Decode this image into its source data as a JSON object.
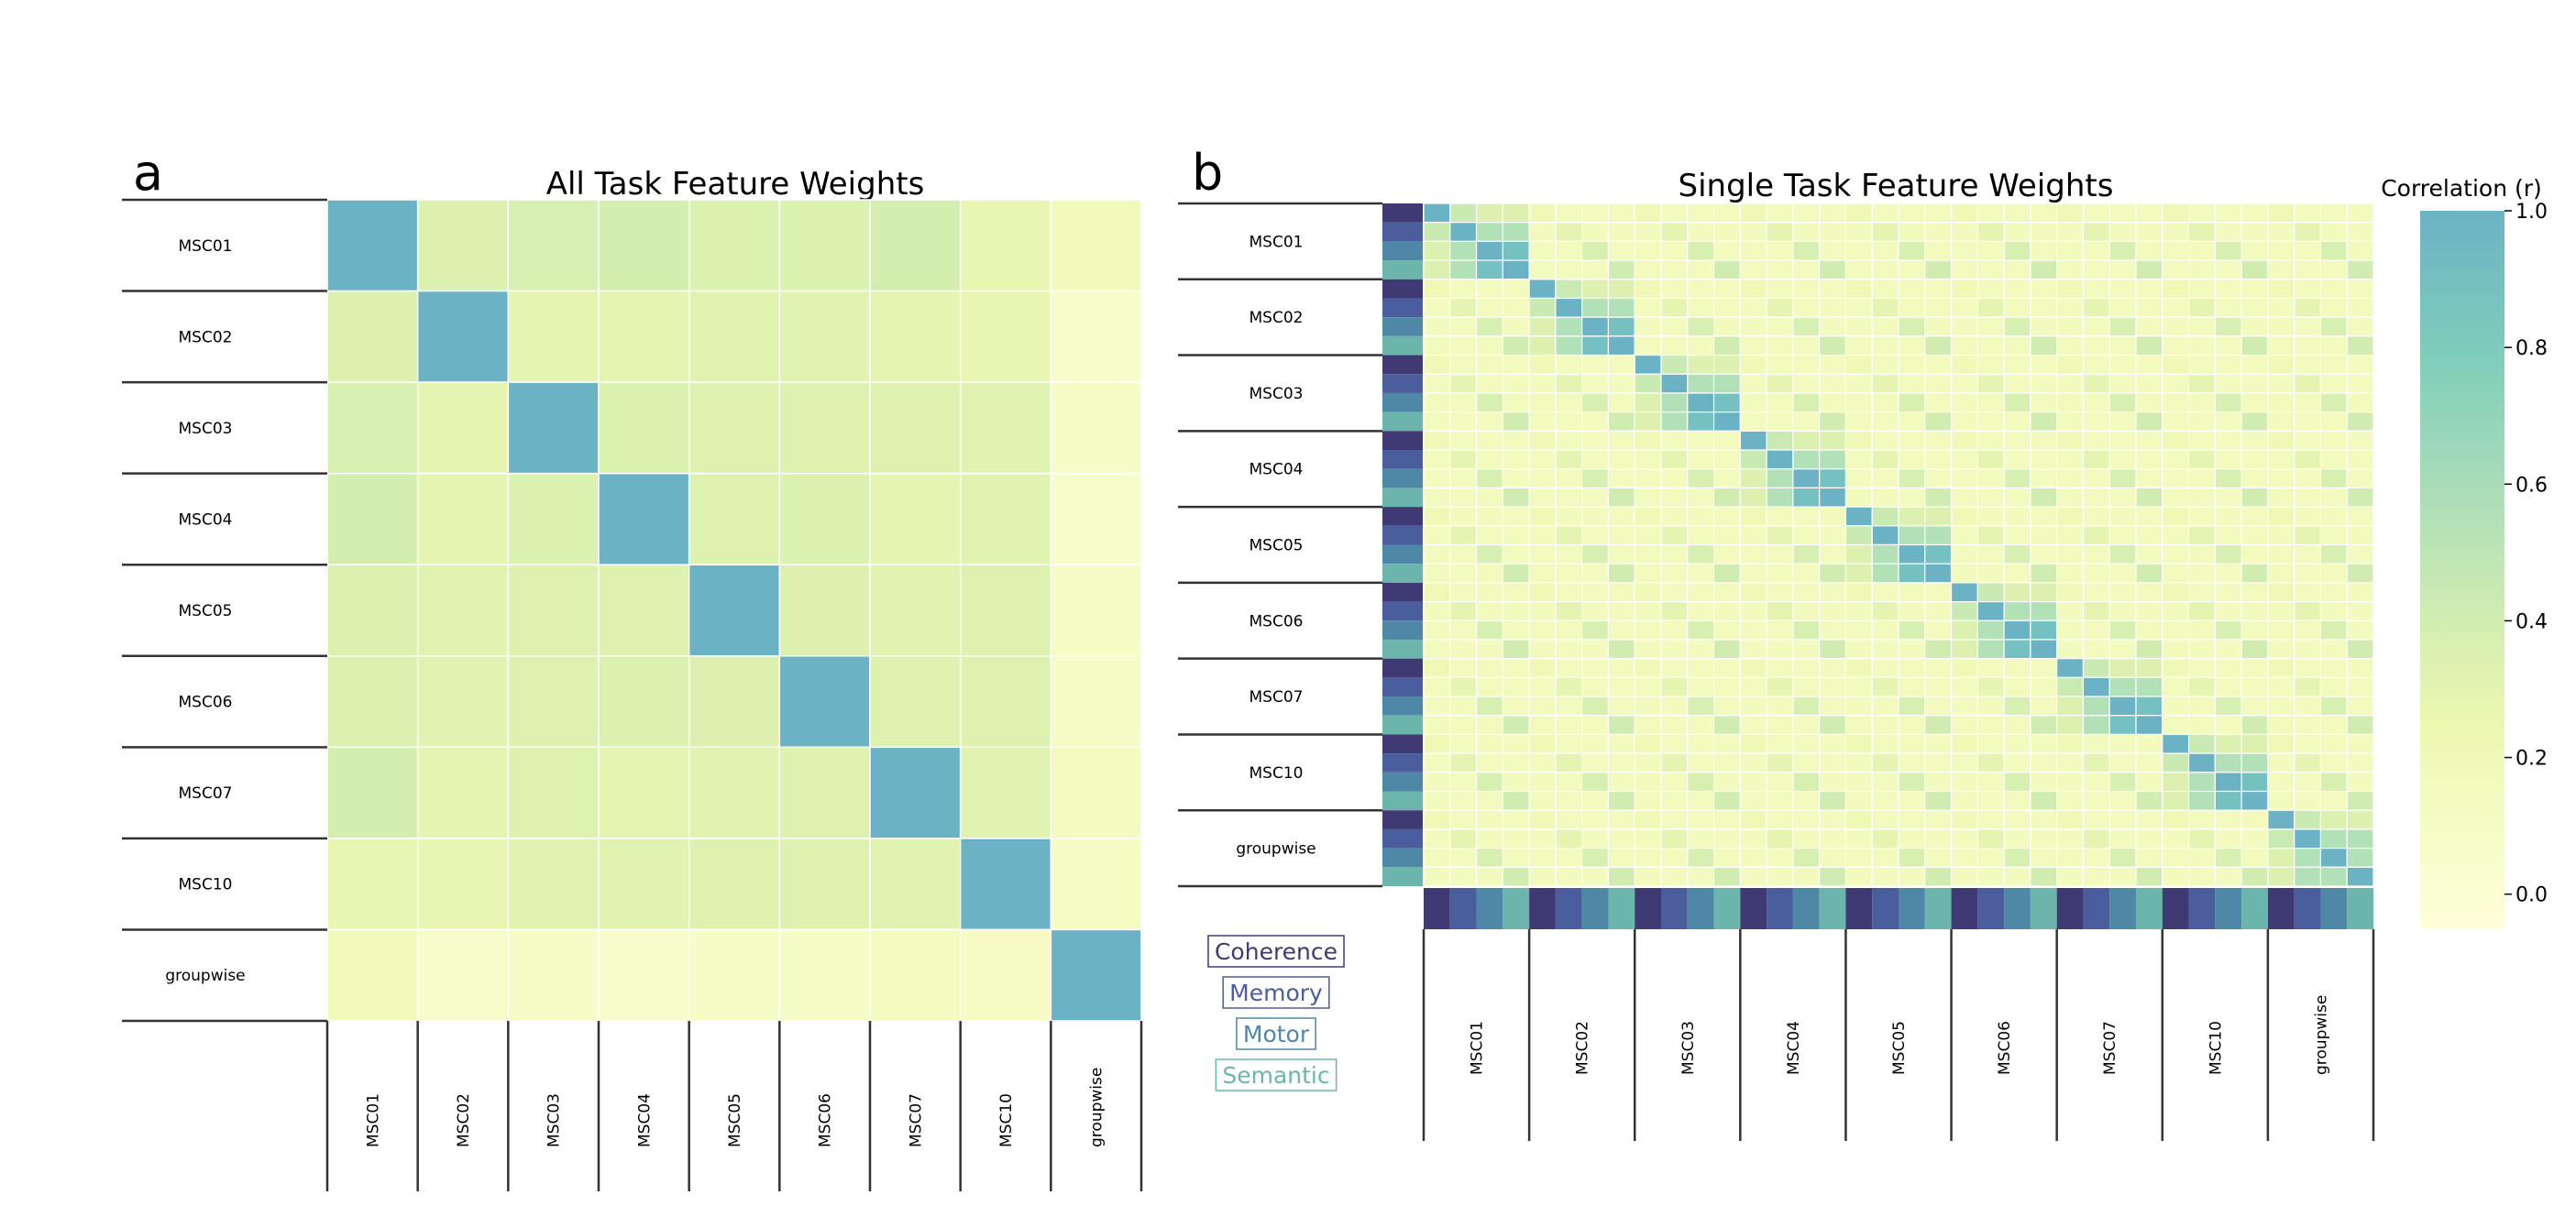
{
  "figure": {
    "panel_a_letter": "a",
    "panel_b_letter": "b",
    "colorbar": {
      "label": "Correlation (r)",
      "ticks": [
        "1.0",
        "0.8",
        "0.6",
        "0.4",
        "0.2",
        "0.0"
      ],
      "tick_values": [
        1.0,
        0.8,
        0.6,
        0.4,
        0.2,
        0.0
      ],
      "range": [
        -0.05,
        1.0
      ],
      "colors": [
        "#ffffd9",
        "#edf8b1",
        "#d4eeb0",
        "#a8dcb9",
        "#7fcdbb",
        "#6bb3c4"
      ]
    },
    "task_legend": [
      {
        "label": "Coherence",
        "color": "#3f3a74"
      },
      {
        "label": "Memory",
        "color": "#4a5d9c"
      },
      {
        "label": "Motor",
        "color": "#4e88a6"
      },
      {
        "label": "Semantic",
        "color": "#6bb5ad"
      }
    ]
  },
  "chart_data": [
    {
      "type": "heatmap",
      "title": "All Task Feature Weights",
      "xlabel": "",
      "ylabel": "",
      "row_labels": [
        "MSC01",
        "MSC02",
        "MSC03",
        "MSC04",
        "MSC05",
        "MSC06",
        "MSC07",
        "MSC10",
        "groupwise"
      ],
      "col_labels": [
        "MSC01",
        "MSC02",
        "MSC03",
        "MSC04",
        "MSC05",
        "MSC06",
        "MSC07",
        "MSC10",
        "groupwise"
      ],
      "vlim": [
        -0.05,
        1.0
      ],
      "values": [
        [
          1.0,
          0.35,
          0.38,
          0.4,
          0.36,
          0.36,
          0.4,
          0.28,
          0.18
        ],
        [
          0.35,
          1.0,
          0.3,
          0.3,
          0.32,
          0.32,
          0.3,
          0.28,
          0.06
        ],
        [
          0.38,
          0.3,
          1.0,
          0.36,
          0.34,
          0.34,
          0.34,
          0.32,
          0.1
        ],
        [
          0.4,
          0.3,
          0.36,
          1.0,
          0.34,
          0.36,
          0.3,
          0.32,
          0.06
        ],
        [
          0.36,
          0.32,
          0.34,
          0.34,
          1.0,
          0.35,
          0.33,
          0.34,
          0.1
        ],
        [
          0.36,
          0.32,
          0.34,
          0.36,
          0.35,
          1.0,
          0.34,
          0.34,
          0.1
        ],
        [
          0.4,
          0.3,
          0.34,
          0.3,
          0.33,
          0.34,
          1.0,
          0.32,
          0.14
        ],
        [
          0.28,
          0.28,
          0.32,
          0.32,
          0.34,
          0.34,
          0.32,
          1.0,
          0.12
        ],
        [
          0.18,
          0.06,
          0.1,
          0.06,
          0.1,
          0.1,
          0.14,
          0.12,
          1.0
        ]
      ]
    },
    {
      "type": "heatmap",
      "title": "Single Task Feature Weights",
      "xlabel": "",
      "ylabel": "",
      "group_labels": [
        "MSC01",
        "MSC02",
        "MSC03",
        "MSC04",
        "MSC05",
        "MSC06",
        "MSC07",
        "MSC10",
        "groupwise"
      ],
      "tasks": [
        "Coherence",
        "Memory",
        "Motor",
        "Semantic"
      ],
      "vlim": [
        -0.05,
        1.0
      ],
      "within_subject_task_r": [
        [
          1.0,
          0.45,
          0.35,
          0.35
        ],
        [
          0.45,
          1.0,
          0.55,
          0.55
        ],
        [
          0.35,
          0.55,
          1.0,
          0.9
        ],
        [
          0.35,
          0.55,
          0.9,
          1.0
        ]
      ],
      "same_task_cross_subject_r": [
        0.22,
        0.3,
        0.38,
        0.42
      ],
      "different_task_cross_subject_r": 0.15,
      "groupwise_motor_semantic_r": 0.55
    }
  ]
}
